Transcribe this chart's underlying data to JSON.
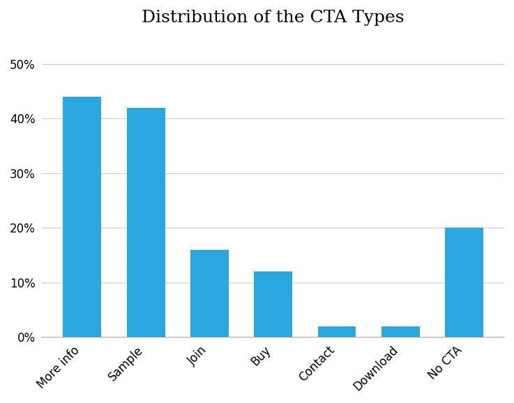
{
  "title": "Distribution of the CTA Types",
  "categories": [
    "More info",
    "Sample",
    "Join",
    "Buy",
    "Contact",
    "Download",
    "No CTA"
  ],
  "values": [
    44,
    42,
    16,
    12,
    2,
    2,
    20
  ],
  "bar_color": "#29a8e0",
  "ylim": [
    0,
    55
  ],
  "yticks": [
    0,
    10,
    20,
    30,
    40,
    50
  ],
  "background_color": "#ffffff",
  "title_fontsize": 18,
  "tick_fontsize": 12,
  "grid_color": "#cccccc"
}
